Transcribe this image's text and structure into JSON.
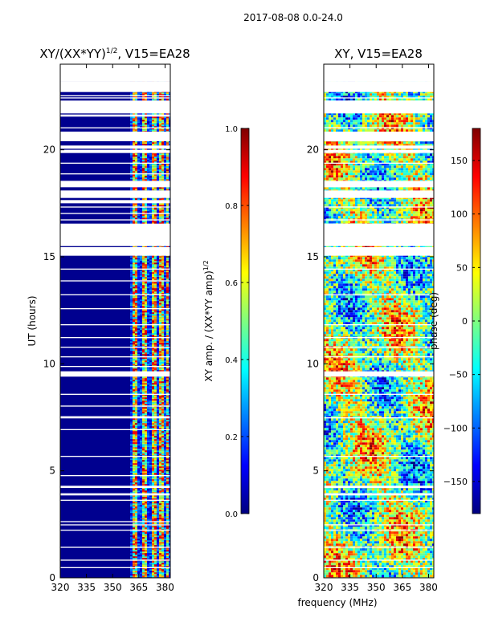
{
  "suptitle": "2017-08-08 0.0-24.0",
  "shared_xlabel": "frequency (MHz)",
  "colors": {
    "background": "#ffffff",
    "fill": "#00008f",
    "jet_stops": [
      "#00007f",
      "#0000ff",
      "#007fff",
      "#00ffff",
      "#7fff7f",
      "#ffff00",
      "#ff7f00",
      "#ff0000",
      "#7f0000"
    ]
  },
  "chart_data": [
    {
      "type": "heatmap",
      "title_prefix": "XY/(XX*YY)",
      "title_exponent": "1/2",
      "title_suffix": ", V15=EA28",
      "xlabel": "",
      "ylabel": "UT (hours)",
      "xlim": [
        320,
        383
      ],
      "ylim": [
        0,
        24
      ],
      "xticks": [
        320,
        335,
        350,
        365,
        380
      ],
      "yticks": [
        0,
        5,
        10,
        15,
        20
      ],
      "fill_x_end": 360,
      "bright_x_start": 360,
      "value_range": [
        0,
        1
      ],
      "mostly_value": 0.05,
      "bright_bands_mhz": [
        [
          361,
          364
        ],
        [
          366,
          369
        ],
        [
          372,
          374
        ],
        [
          376,
          378
        ],
        [
          380,
          382
        ]
      ],
      "gaps_hours": [
        [
          0.45,
          0.5
        ],
        [
          0.8,
          0.85
        ],
        [
          1.4,
          1.45
        ],
        [
          2.2,
          2.25
        ],
        [
          2.45,
          2.5
        ],
        [
          2.6,
          2.65
        ],
        [
          3.6,
          3.65
        ],
        [
          3.85,
          3.95
        ],
        [
          4.2,
          4.3
        ],
        [
          4.75,
          4.8
        ],
        [
          5.65,
          5.7
        ],
        [
          6.9,
          6.95
        ],
        [
          7.45,
          7.55
        ],
        [
          8.0,
          8.05
        ],
        [
          8.55,
          8.6
        ],
        [
          9.4,
          9.65
        ],
        [
          9.85,
          9.9
        ],
        [
          10.3,
          10.35
        ],
        [
          10.75,
          10.8
        ],
        [
          11.2,
          11.25
        ],
        [
          11.8,
          11.85
        ],
        [
          12.55,
          12.6
        ],
        [
          13.2,
          13.25
        ],
        [
          13.85,
          13.9
        ],
        [
          14.4,
          14.45
        ],
        [
          15.05,
          15.45
        ],
        [
          15.5,
          16.55
        ],
        [
          16.7,
          16.75
        ],
        [
          17.0,
          17.05
        ],
        [
          17.3,
          17.35
        ],
        [
          17.5,
          17.65
        ],
        [
          17.75,
          18.1
        ],
        [
          18.25,
          18.55
        ],
        [
          18.85,
          18.9
        ],
        [
          19.35,
          19.4
        ],
        [
          19.85,
          20.0
        ],
        [
          20.05,
          20.2
        ],
        [
          20.4,
          20.85
        ],
        [
          21.0,
          21.05
        ],
        [
          21.55,
          21.65
        ],
        [
          21.7,
          22.3
        ],
        [
          22.4,
          22.45
        ],
        [
          22.5,
          22.55
        ],
        [
          22.7,
          23.2
        ]
      ],
      "colorbar": {
        "label_prefix": "XY amp. / (XX*YY amp)",
        "label_exponent": "1/2",
        "range": [
          0,
          1
        ],
        "ticks": [
          "0.0",
          "0.2",
          "0.4",
          "0.6",
          "0.8",
          "1.0"
        ],
        "tick_values": [
          0,
          0.2,
          0.4,
          0.6,
          0.8,
          1.0
        ]
      }
    },
    {
      "type": "heatmap",
      "title": "XY, V15=EA28",
      "xlabel": "",
      "ylabel": "",
      "xlim": [
        320,
        383
      ],
      "ylim": [
        0,
        24
      ],
      "xticks": [
        320,
        335,
        350,
        365,
        380
      ],
      "yticks": [
        0,
        5,
        10,
        15,
        20
      ],
      "value_range": [
        -180,
        180
      ],
      "gaps_hours": [
        [
          0.45,
          0.5
        ],
        [
          0.8,
          0.85
        ],
        [
          1.4,
          1.45
        ],
        [
          2.2,
          2.25
        ],
        [
          2.45,
          2.5
        ],
        [
          3.6,
          3.65
        ],
        [
          3.85,
          3.95
        ],
        [
          4.2,
          4.3
        ],
        [
          5.65,
          5.7
        ],
        [
          7.45,
          7.5
        ],
        [
          8.55,
          8.6
        ],
        [
          9.4,
          9.65
        ],
        [
          10.3,
          10.35
        ],
        [
          10.75,
          10.8
        ],
        [
          11.2,
          11.25
        ],
        [
          11.8,
          11.85
        ],
        [
          13.2,
          13.25
        ],
        [
          14.4,
          14.45
        ],
        [
          15.05,
          15.45
        ],
        [
          15.5,
          16.55
        ],
        [
          16.7,
          16.75
        ],
        [
          17.3,
          17.35
        ],
        [
          17.75,
          18.1
        ],
        [
          18.25,
          18.55
        ],
        [
          19.35,
          19.4
        ],
        [
          19.85,
          20.0
        ],
        [
          20.05,
          20.2
        ],
        [
          20.4,
          20.85
        ],
        [
          21.0,
          21.05
        ],
        [
          21.7,
          22.3
        ],
        [
          22.4,
          22.45
        ],
        [
          22.7,
          23.2
        ]
      ],
      "colorbar": {
        "label": "phase (deg)",
        "range": [
          -180,
          180
        ],
        "ticks": [
          "−150",
          "−100",
          "−50",
          "0",
          "50",
          "100",
          "150"
        ],
        "tick_values": [
          -150,
          -100,
          -50,
          0,
          50,
          100,
          150
        ]
      }
    }
  ]
}
